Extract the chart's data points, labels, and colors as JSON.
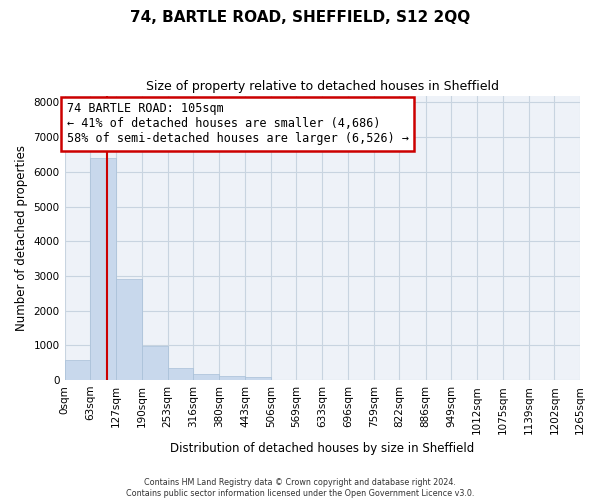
{
  "title": "74, BARTLE ROAD, SHEFFIELD, S12 2QQ",
  "subtitle": "Size of property relative to detached houses in Sheffield",
  "xlabel": "Distribution of detached houses by size in Sheffield",
  "ylabel": "Number of detached properties",
  "bar_color": "#c8d8ec",
  "bar_edgecolor": "#a8c0d8",
  "annotation_line_color": "#cc0000",
  "annotation_box_text": "74 BARTLE ROAD: 105sqm\n← 41% of detached houses are smaller (4,686)\n58% of semi-detached houses are larger (6,526) →",
  "property_size": 105,
  "bin_edges": [
    0,
    63,
    127,
    190,
    253,
    316,
    380,
    443,
    506,
    569,
    633,
    696,
    759,
    822,
    886,
    949,
    1012,
    1075,
    1139,
    1202,
    1265
  ],
  "bin_labels": [
    "0sqm",
    "63sqm",
    "127sqm",
    "190sqm",
    "253sqm",
    "316sqm",
    "380sqm",
    "443sqm",
    "506sqm",
    "569sqm",
    "633sqm",
    "696sqm",
    "759sqm",
    "822sqm",
    "886sqm",
    "949sqm",
    "1012sqm",
    "1075sqm",
    "1139sqm",
    "1202sqm",
    "1265sqm"
  ],
  "counts": [
    580,
    6400,
    2900,
    970,
    360,
    175,
    110,
    100,
    0,
    0,
    0,
    0,
    0,
    0,
    0,
    0,
    0,
    0,
    0,
    0
  ],
  "ylim": [
    0,
    8200
  ],
  "yticks": [
    0,
    1000,
    2000,
    3000,
    4000,
    5000,
    6000,
    7000,
    8000
  ],
  "grid_color": "#c8d4e0",
  "background_color": "#eef2f8",
  "footer_line1": "Contains HM Land Registry data © Crown copyright and database right 2024.",
  "footer_line2": "Contains public sector information licensed under the Open Government Licence v3.0."
}
